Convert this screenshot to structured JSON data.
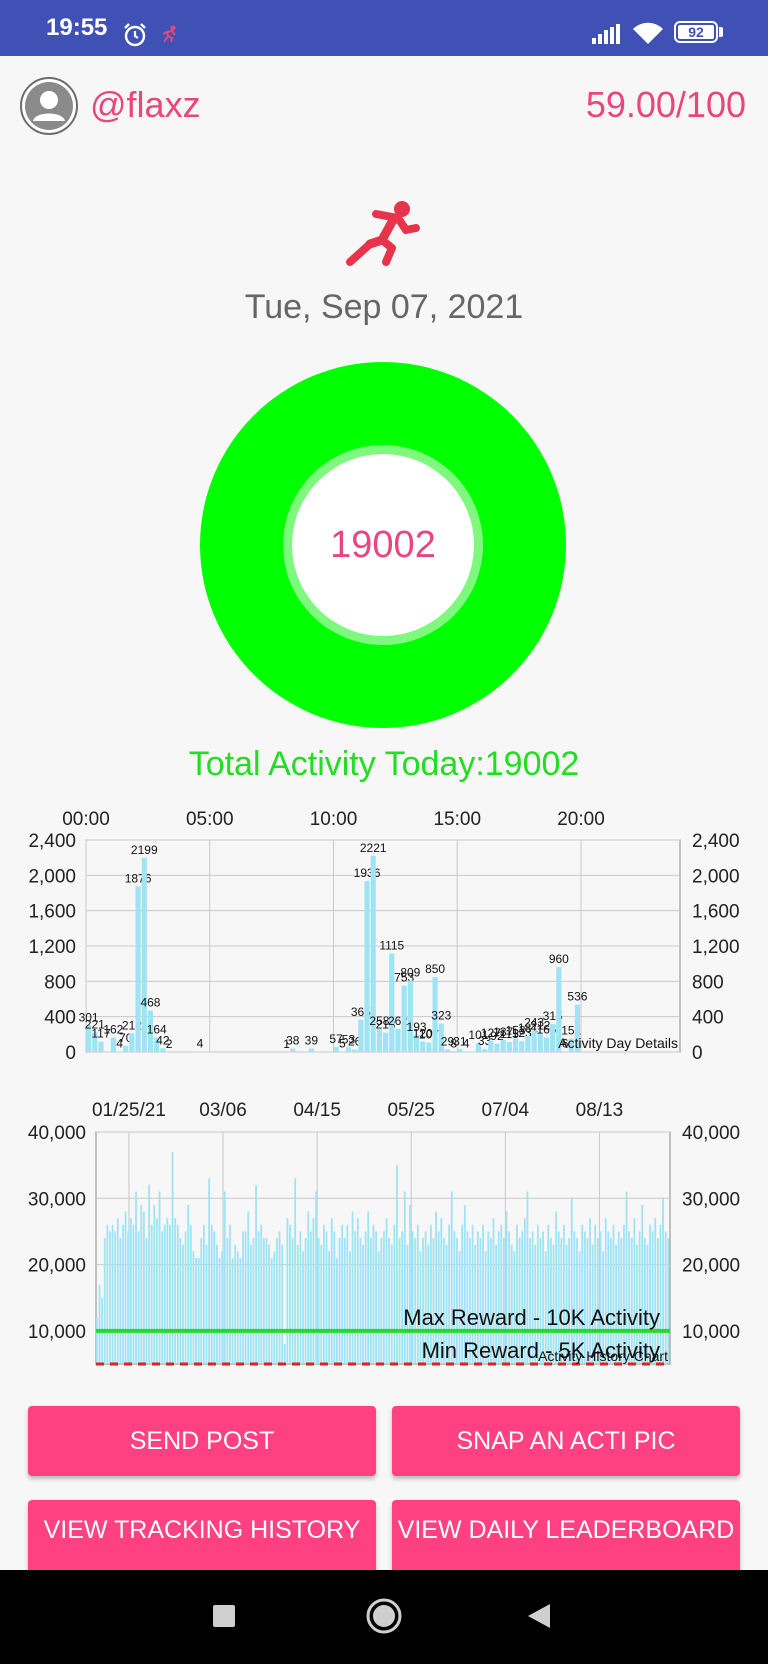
{
  "status_bar": {
    "time": "19:55",
    "battery": "92",
    "icons": [
      "alarm-icon",
      "running-notification-icon",
      "signal-icon",
      "wifi-icon",
      "battery-icon"
    ]
  },
  "header": {
    "username": "@flaxz",
    "score": "59.00/100",
    "avatar_icon": "user-avatar-icon"
  },
  "today": {
    "icon": "runner-icon",
    "date": "Tue, Sep 07, 2021",
    "steps": "19002",
    "total_label": "Total Activity Today:19002"
  },
  "colors": {
    "accent": "#e8477d",
    "button": "#ff4081",
    "ring": "#00ff00",
    "status_bar": "#3f51b5",
    "bars": "#9fe4f4",
    "max_line": "#22dd22",
    "min_line": "#dd2222"
  },
  "chart_data": [
    {
      "type": "bar",
      "x_tick_labels": [
        "00:00",
        "05:00",
        "10:00",
        "15:00",
        "20:00"
      ],
      "y_tick_labels": [
        "0",
        "400",
        "800",
        "1,200",
        "1,600",
        "2,000",
        "2,400"
      ],
      "ylim": [
        0,
        2400
      ],
      "xlim_hours": [
        0,
        24
      ],
      "grid": true,
      "caption": "Activity Day Details",
      "points": [
        {
          "h": 0.0,
          "v": 301
        },
        {
          "h": 0.25,
          "v": 221
        },
        {
          "h": 0.5,
          "v": 117
        },
        {
          "h": 1.0,
          "v": 162
        },
        {
          "h": 1.25,
          "v": 4
        },
        {
          "h": 1.5,
          "v": 70
        },
        {
          "h": 1.75,
          "v": 212
        },
        {
          "h": 2.0,
          "v": 1876
        },
        {
          "h": 2.25,
          "v": 2199
        },
        {
          "h": 2.5,
          "v": 468
        },
        {
          "h": 2.75,
          "v": 164
        },
        {
          "h": 3.0,
          "v": 42
        },
        {
          "h": 3.25,
          "v": 2
        },
        {
          "h": 4.5,
          "v": 4
        },
        {
          "h": 8.0,
          "v": 1
        },
        {
          "h": 8.25,
          "v": 38
        },
        {
          "h": 9.0,
          "v": 39
        },
        {
          "h": 10.0,
          "v": 57
        },
        {
          "h": 10.25,
          "v": 5
        },
        {
          "h": 10.5,
          "v": 53
        },
        {
          "h": 10.75,
          "v": 26
        },
        {
          "h": 11.0,
          "v": 365
        },
        {
          "h": 11.25,
          "v": 1936
        },
        {
          "h": 11.5,
          "v": 2221
        },
        {
          "h": 11.75,
          "v": 258
        },
        {
          "h": 12.0,
          "v": 218
        },
        {
          "h": 12.25,
          "v": 1115
        },
        {
          "h": 12.5,
          "v": 262
        },
        {
          "h": 12.75,
          "v": 753
        },
        {
          "h": 13.0,
          "v": 809
        },
        {
          "h": 13.25,
          "v": 193
        },
        {
          "h": 13.5,
          "v": 120
        },
        {
          "h": 13.75,
          "v": 107
        },
        {
          "h": 14.0,
          "v": 850
        },
        {
          "h": 14.25,
          "v": 323
        },
        {
          "h": 14.5,
          "v": 29
        },
        {
          "h": 14.75,
          "v": 8
        },
        {
          "h": 15.0,
          "v": 31
        },
        {
          "h": 15.25,
          "v": 4
        },
        {
          "h": 15.75,
          "v": 101
        },
        {
          "h": 16.0,
          "v": 33
        },
        {
          "h": 16.25,
          "v": 127
        },
        {
          "h": 16.5,
          "v": 92
        },
        {
          "h": 16.75,
          "v": 137
        },
        {
          "h": 17.0,
          "v": 115
        },
        {
          "h": 17.25,
          "v": 153
        },
        {
          "h": 17.5,
          "v": 123
        },
        {
          "h": 17.75,
          "v": 181
        },
        {
          "h": 18.0,
          "v": 243
        },
        {
          "h": 18.25,
          "v": 212
        },
        {
          "h": 18.5,
          "v": 166
        },
        {
          "h": 18.75,
          "v": 315
        },
        {
          "h": 19.0,
          "v": 960
        },
        {
          "h": 19.25,
          "v": 6
        },
        {
          "h": 19.5,
          "v": 151
        },
        {
          "h": 19.75,
          "v": 536
        }
      ]
    },
    {
      "type": "bar",
      "x_tick_labels": [
        "01/25/21",
        "03/06",
        "04/15",
        "05/25",
        "07/04",
        "08/13"
      ],
      "y_tick_labels": [
        "10,000",
        "20,000",
        "30,000",
        "40,000"
      ],
      "ylim": [
        5000,
        40000
      ],
      "grid": true,
      "caption": "Activity History Chart",
      "reference_lines": [
        {
          "label": "Max Reward - 10K Activity",
          "value": 10000,
          "style": "solid",
          "color": "#22dd22"
        },
        {
          "label": "Min Reward - 5K Activity",
          "value": 5000,
          "style": "dashed",
          "color": "#dd2222"
        }
      ],
      "daily_values": [
        12000,
        17000,
        15000,
        24000,
        26000,
        25000,
        26000,
        25000,
        27000,
        24000,
        26000,
        28000,
        25000,
        27000,
        26000,
        31000,
        25000,
        29000,
        28000,
        24000,
        32000,
        26000,
        29000,
        27000,
        31000,
        25000,
        26000,
        27000,
        26000,
        37000,
        27000,
        26000,
        24000,
        23000,
        25000,
        29000,
        26000,
        22000,
        21000,
        21000,
        24000,
        26000,
        23000,
        33000,
        26000,
        25000,
        23000,
        21000,
        22000,
        31000,
        24000,
        26000,
        21000,
        23000,
        22000,
        21000,
        25000,
        25000,
        28000,
        23000,
        24000,
        32000,
        25000,
        26000,
        24000,
        24000,
        23000,
        21000,
        22000,
        24000,
        25000,
        23000,
        8000,
        27000,
        26000,
        24000,
        33000,
        23000,
        25000,
        22000,
        24000,
        28000,
        25000,
        27000,
        31000,
        24000,
        23000,
        26000,
        25000,
        22000,
        27000,
        25000,
        21000,
        24000,
        26000,
        24000,
        26000,
        22000,
        28000,
        25000,
        27000,
        24000,
        23000,
        25000,
        28000,
        24000,
        26000,
        25000,
        22000,
        24000,
        25000,
        27000,
        24000,
        23000,
        26000,
        35000,
        24000,
        25000,
        31000,
        23000,
        29000,
        25000,
        24000,
        26000,
        22000,
        24000,
        25000,
        23000,
        26000,
        24000,
        28000,
        25000,
        27000,
        24000,
        23000,
        26000,
        31000,
        25000,
        24000,
        22000,
        26000,
        29000,
        25000,
        24000,
        26000,
        23000,
        25000,
        24000,
        26000,
        22000,
        25000,
        24000,
        27000,
        23000,
        25000,
        26000,
        24000,
        28000,
        25000,
        23000,
        22000,
        26000,
        24000,
        25000,
        27000,
        31000,
        24000,
        25000,
        23000,
        26000,
        24000,
        25000,
        22000,
        26000,
        24000,
        23000,
        28000,
        25000,
        24000,
        26000,
        23000,
        24000,
        30000,
        25000,
        24000,
        22000,
        26000,
        25000,
        24000,
        27000,
        23000,
        26000,
        24000,
        25000,
        22000,
        27000,
        25000,
        24000,
        26000,
        23000,
        25000,
        24000,
        26000,
        31000,
        25000,
        24000,
        27000,
        23000,
        25000,
        29000,
        24000,
        23000,
        26000,
        25000,
        27000,
        24000,
        26000,
        30000,
        25000,
        24000
      ]
    }
  ],
  "buttons": {
    "send_post": "SEND POST",
    "snap_pic": "SNAP AN ACTI PIC",
    "view_tracking": "VIEW TRACKING HISTORY",
    "view_leaderboard": "VIEW DAILY LEADERBOARD"
  },
  "nav": {
    "icons": [
      "recents-square-icon",
      "home-circle-icon",
      "back-triangle-icon"
    ]
  }
}
